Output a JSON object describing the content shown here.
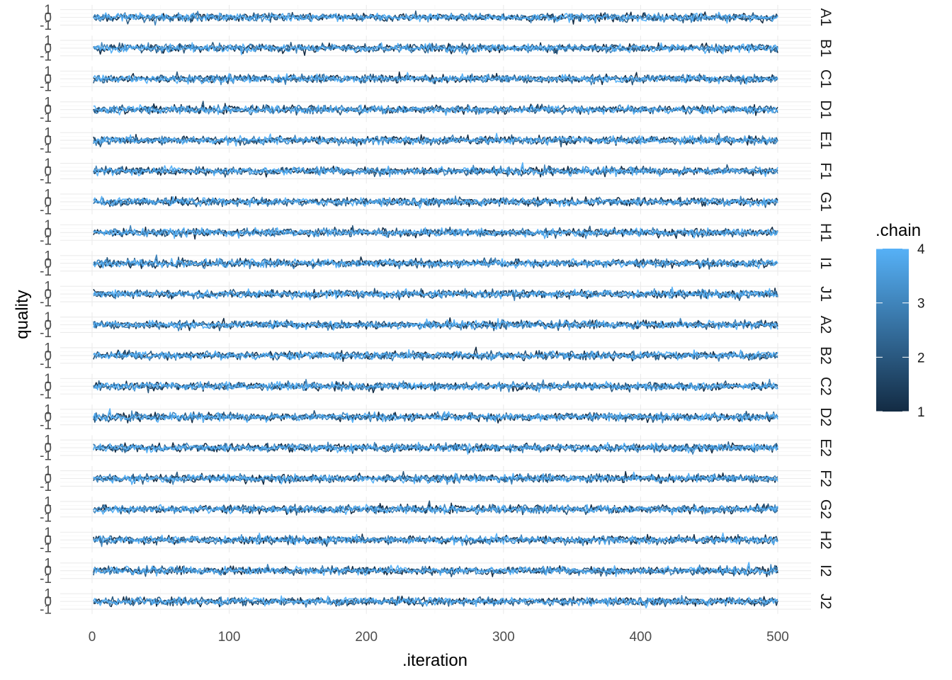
{
  "chart_data": {
    "type": "line",
    "xlabel": ".iteration",
    "ylabel": "quality",
    "xlim": [
      0,
      500
    ],
    "x_ticks": [
      0,
      100,
      200,
      300,
      400,
      500
    ],
    "y_ticks": [
      -1,
      0,
      1
    ],
    "y_tick_labels": [
      "-1",
      "0",
      "1"
    ],
    "panel_ylim": [
      -1.6,
      1.6
    ],
    "grid": true,
    "facets": [
      "A1",
      "B1",
      "C1",
      "D1",
      "E1",
      "F1",
      "G1",
      "H1",
      "I1",
      "J1",
      "A2",
      "B2",
      "C2",
      "D2",
      "E2",
      "F2",
      "G2",
      "H2",
      "I2",
      "J2"
    ],
    "facet_strip_position": "right",
    "n_iterations": 500,
    "chains": [
      1,
      2,
      3,
      4
    ],
    "trace_center": 0,
    "trace_amplitude": 0.25,
    "legend": {
      "title": ".chain",
      "type": "colorbar",
      "placement": "right",
      "range": [
        1,
        4
      ],
      "breaks": [
        1,
        2,
        3,
        4
      ],
      "break_labels": [
        "1",
        "2",
        "3",
        "4"
      ],
      "color_low": "#132B43",
      "color_high": "#56B1F7"
    }
  }
}
